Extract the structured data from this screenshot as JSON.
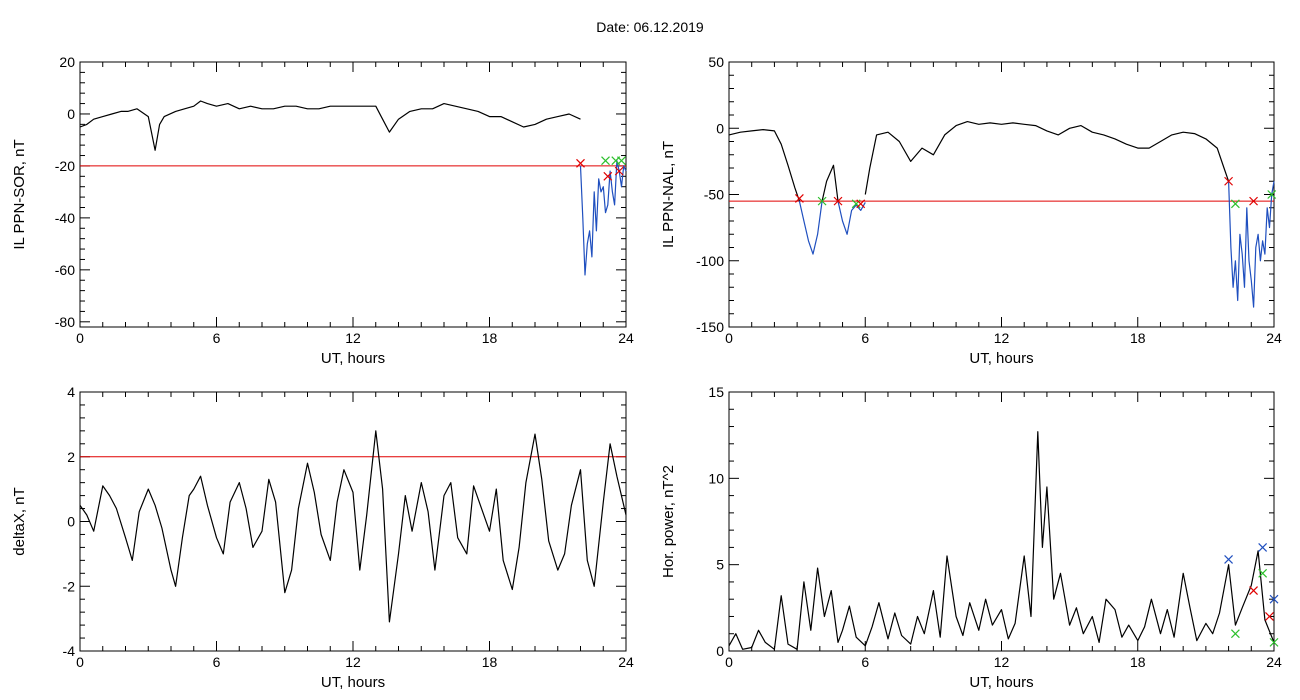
{
  "page": {
    "title": "Date:  06.12.2019"
  },
  "chart_data": [
    {
      "id": "ppn-sor",
      "type": "line",
      "xlabel": "UT, hours",
      "ylabel": "IL PPN-SOR, nT",
      "xlim": [
        0,
        24
      ],
      "ylim": [
        -82,
        20
      ],
      "xticks": [
        0,
        6,
        12,
        18,
        24
      ],
      "yticks": [
        20,
        0,
        -20,
        -40,
        -60,
        -80
      ],
      "threshold": -20,
      "colors": {
        "line": "#000000",
        "highlight": "#1f4fbf",
        "threshold": "#e00000"
      },
      "series": [
        {
          "color": "#000000",
          "x": [
            0,
            0.3,
            0.6,
            1,
            1.4,
            1.8,
            2.1,
            2.5,
            3,
            3.3,
            3.5,
            3.7,
            4.2,
            4.6,
            5,
            5.3,
            5.6,
            6,
            6.5,
            7,
            7.5,
            8,
            8.5,
            9,
            9.5,
            10,
            10.5,
            11,
            11.5,
            12,
            12.5,
            13,
            13.3,
            13.6,
            14,
            14.5,
            15,
            15.5,
            16,
            16.5,
            17,
            17.5,
            18,
            18.5,
            19,
            19.5,
            20,
            20.5,
            21,
            21.5,
            22
          ],
          "y": [
            -5,
            -4,
            -2,
            -1,
            0,
            1,
            1,
            2,
            -1,
            -14,
            -4,
            -1,
            1,
            2,
            3,
            5,
            4,
            3,
            4,
            2,
            3,
            2,
            2,
            3,
            3,
            2,
            2,
            3,
            3,
            3,
            3,
            3,
            -2,
            -7,
            -2,
            1,
            2,
            2,
            4,
            3,
            2,
            1,
            -1,
            -1,
            -3,
            -5,
            -4,
            -2,
            -1,
            0,
            -2
          ]
        },
        {
          "color": "#1f4fbf",
          "x": [
            22,
            22.1,
            22.2,
            22.3,
            22.4,
            22.5,
            22.6,
            22.7,
            22.8,
            22.9,
            23,
            23.1,
            23.2,
            23.3,
            23.4,
            23.5,
            23.6,
            23.7,
            23.8,
            23.9,
            24
          ],
          "y": [
            -20,
            -40,
            -62,
            -50,
            -45,
            -55,
            -30,
            -45,
            -25,
            -30,
            -28,
            -38,
            -35,
            -22,
            -30,
            -35,
            -18,
            -22,
            -28,
            -20,
            -22
          ]
        }
      ],
      "markers": [
        {
          "x": 22,
          "y": -19,
          "color": "#e00000"
        },
        {
          "x": 23.1,
          "y": -18,
          "color": "#2bbf2b"
        },
        {
          "x": 23.2,
          "y": -24,
          "color": "#e00000"
        },
        {
          "x": 23.55,
          "y": -18,
          "color": "#2bbf2b"
        },
        {
          "x": 23.7,
          "y": -22,
          "color": "#e00000"
        },
        {
          "x": 23.8,
          "y": -18,
          "color": "#2bbf2b"
        }
      ]
    },
    {
      "id": "ppn-nal",
      "type": "line",
      "xlabel": "UT, hours",
      "ylabel": "IL PPN-NAL, nT",
      "xlim": [
        0,
        24
      ],
      "ylim": [
        -150,
        50
      ],
      "xticks": [
        0,
        6,
        12,
        18,
        24
      ],
      "yticks": [
        50,
        0,
        -50,
        -100,
        -150
      ],
      "threshold": -55,
      "colors": {
        "line": "#000000",
        "highlight": "#1f4fbf",
        "threshold": "#e00000"
      },
      "series": [
        {
          "color": "#000000",
          "x": [
            0,
            0.5,
            1,
            1.5,
            2,
            2.3,
            2.6,
            2.9,
            3.1
          ],
          "y": [
            -5,
            -3,
            -2,
            -1,
            -2,
            -12,
            -28,
            -45,
            -55
          ]
        },
        {
          "color": "#1f4fbf",
          "x": [
            3.1,
            3.3,
            3.5,
            3.7,
            3.9,
            4.1
          ],
          "y": [
            -55,
            -70,
            -85,
            -95,
            -80,
            -55
          ]
        },
        {
          "color": "#000000",
          "x": [
            4.1,
            4.3,
            4.6,
            4.8
          ],
          "y": [
            -55,
            -40,
            -28,
            -55
          ]
        },
        {
          "color": "#1f4fbf",
          "x": [
            4.8,
            5,
            5.2,
            5.4,
            5.6,
            5.8,
            6
          ],
          "y": [
            -55,
            -70,
            -80,
            -62,
            -58,
            -62,
            -56
          ]
        },
        {
          "color": "#000000",
          "x": [
            6,
            6.2,
            6.5,
            7,
            7.5,
            8,
            8.5,
            9,
            9.5,
            10,
            10.5,
            11,
            11.5,
            12,
            12.5,
            13,
            13.5,
            14,
            14.5,
            15,
            15.5,
            16,
            16.5,
            17,
            17.5,
            18,
            18.5,
            19,
            19.5,
            20,
            20.5,
            21,
            21.5,
            21.8,
            22
          ],
          "y": [
            -50,
            -30,
            -5,
            -3,
            -10,
            -25,
            -15,
            -20,
            -5,
            2,
            5,
            3,
            4,
            3,
            4,
            3,
            2,
            -2,
            -5,
            0,
            2,
            -3,
            -5,
            -8,
            -12,
            -15,
            -15,
            -10,
            -5,
            -3,
            -4,
            -8,
            -15,
            -30,
            -40
          ]
        },
        {
          "color": "#1f4fbf",
          "x": [
            22,
            22.1,
            22.2,
            22.3,
            22.4,
            22.5,
            22.6,
            22.7,
            22.8,
            22.9,
            23,
            23.1,
            23.2,
            23.3,
            23.4,
            23.5,
            23.6,
            23.7,
            23.8,
            23.9,
            24
          ],
          "y": [
            -40,
            -90,
            -120,
            -100,
            -130,
            -80,
            -95,
            -120,
            -60,
            -100,
            -115,
            -135,
            -90,
            -80,
            -100,
            -85,
            -95,
            -60,
            -75,
            -50,
            -40
          ]
        }
      ],
      "markers": [
        {
          "x": 3.1,
          "y": -53,
          "color": "#e00000"
        },
        {
          "x": 4.1,
          "y": -55,
          "color": "#2bbf2b"
        },
        {
          "x": 4.8,
          "y": -55,
          "color": "#e00000"
        },
        {
          "x": 5.6,
          "y": -57,
          "color": "#2bbf2b"
        },
        {
          "x": 5.8,
          "y": -57,
          "color": "#e00000"
        },
        {
          "x": 22,
          "y": -40,
          "color": "#e00000"
        },
        {
          "x": 22.3,
          "y": -57,
          "color": "#2bbf2b"
        },
        {
          "x": 23.1,
          "y": -55,
          "color": "#e00000"
        },
        {
          "x": 23.9,
          "y": -50,
          "color": "#2bbf2b"
        }
      ]
    },
    {
      "id": "deltax",
      "type": "line",
      "xlabel": "UT, hours",
      "ylabel": "deltaX, nT",
      "xlim": [
        0,
        24
      ],
      "ylim": [
        -4,
        4
      ],
      "xticks": [
        0,
        6,
        12,
        18,
        24
      ],
      "yticks": [
        4,
        2,
        0,
        -2,
        -4
      ],
      "threshold": 2,
      "colors": {
        "line": "#000000",
        "threshold": "#e00000"
      },
      "series": [
        {
          "color": "#000000",
          "x": [
            0,
            0.3,
            0.6,
            1,
            1.3,
            1.6,
            2,
            2.3,
            2.6,
            3,
            3.3,
            3.6,
            4,
            4.2,
            4.5,
            4.8,
            5,
            5.3,
            5.6,
            6,
            6.3,
            6.6,
            7,
            7.3,
            7.6,
            8,
            8.3,
            8.6,
            9,
            9.3,
            9.6,
            10,
            10.3,
            10.6,
            11,
            11.3,
            11.6,
            12,
            12.3,
            12.6,
            13,
            13.3,
            13.6,
            14,
            14.3,
            14.6,
            15,
            15.3,
            15.6,
            16,
            16.3,
            16.6,
            17,
            17.3,
            17.6,
            18,
            18.3,
            18.6,
            19,
            19.3,
            19.6,
            20,
            20.3,
            20.6,
            21,
            21.3,
            21.6,
            22,
            22.3,
            22.6,
            23,
            23.3,
            23.6,
            24
          ],
          "y": [
            0.5,
            0.2,
            -0.3,
            1.1,
            0.8,
            0.4,
            -0.5,
            -1.2,
            0.3,
            1.0,
            0.5,
            -0.2,
            -1.5,
            -2.0,
            -0.5,
            0.8,
            1.0,
            1.4,
            0.5,
            -0.5,
            -1.0,
            0.6,
            1.2,
            0.4,
            -0.8,
            -0.3,
            1.3,
            0.6,
            -2.2,
            -1.5,
            0.4,
            1.8,
            0.9,
            -0.4,
            -1.2,
            0.6,
            1.6,
            0.9,
            -1.5,
            0.2,
            2.8,
            1.0,
            -3.1,
            -1.0,
            0.8,
            -0.3,
            1.2,
            0.3,
            -1.5,
            0.8,
            1.2,
            -0.5,
            -1.0,
            1.1,
            0.5,
            -0.3,
            1.0,
            -1.2,
            -2.1,
            -0.8,
            1.2,
            2.7,
            1.3,
            -0.6,
            -1.5,
            -1.0,
            0.5,
            1.6,
            -1.2,
            -2.0,
            0.6,
            2.4,
            1.4,
            0.2
          ]
        }
      ],
      "markers": []
    },
    {
      "id": "hor-power",
      "type": "line",
      "xlabel": "UT, hours",
      "ylabel": "Hor. power, nT^2",
      "xlim": [
        0,
        24
      ],
      "ylim": [
        0,
        15
      ],
      "xticks": [
        0,
        6,
        12,
        18,
        24
      ],
      "yticks": [
        15,
        10,
        5,
        0
      ],
      "colors": {
        "line": "#000000"
      },
      "series": [
        {
          "color": "#000000",
          "x": [
            0,
            0.3,
            0.6,
            1,
            1.3,
            1.6,
            2,
            2.3,
            2.6,
            3,
            3.3,
            3.6,
            3.9,
            4.2,
            4.5,
            4.8,
            5,
            5.3,
            5.6,
            6,
            6.3,
            6.6,
            7,
            7.3,
            7.6,
            8,
            8.3,
            8.6,
            9,
            9.3,
            9.6,
            10,
            10.3,
            10.6,
            11,
            11.3,
            11.6,
            12,
            12.3,
            12.6,
            13,
            13.3,
            13.6,
            13.8,
            14,
            14.3,
            14.6,
            15,
            15.3,
            15.6,
            16,
            16.3,
            16.6,
            17,
            17.3,
            17.6,
            18,
            18.3,
            18.6,
            19,
            19.3,
            19.6,
            20,
            20.3,
            20.6,
            21,
            21.3,
            21.6,
            22,
            22.3,
            22.6,
            23,
            23.3,
            23.6,
            24
          ],
          "y": [
            0.3,
            1.0,
            0.1,
            0.2,
            1.2,
            0.5,
            0.1,
            3.2,
            0.4,
            0.1,
            4.0,
            1.2,
            4.8,
            2.0,
            3.5,
            0.5,
            1.2,
            2.6,
            0.8,
            0.3,
            1.4,
            2.8,
            0.7,
            2.2,
            0.9,
            0.4,
            2.0,
            1.0,
            3.5,
            0.8,
            5.5,
            2.0,
            0.9,
            2.8,
            1.2,
            3.0,
            1.5,
            2.4,
            0.7,
            1.6,
            5.5,
            2.0,
            12.7,
            6.0,
            9.5,
            3.0,
            4.5,
            1.5,
            2.5,
            1.0,
            2.0,
            0.5,
            3.0,
            2.4,
            0.8,
            1.5,
            0.6,
            1.4,
            3.0,
            1.0,
            2.4,
            0.8,
            4.5,
            2.5,
            0.6,
            1.6,
            1.0,
            2.2,
            5.0,
            1.5,
            2.5,
            3.8,
            5.8,
            1.8,
            0.5
          ]
        }
      ],
      "markers": [
        {
          "x": 22,
          "y": 5.3,
          "color": "#1f4fbf"
        },
        {
          "x": 22.3,
          "y": 1.0,
          "color": "#2bbf2b"
        },
        {
          "x": 23.1,
          "y": 3.5,
          "color": "#e00000"
        },
        {
          "x": 23.5,
          "y": 6.0,
          "color": "#1f4fbf"
        },
        {
          "x": 23.5,
          "y": 4.5,
          "color": "#2bbf2b"
        },
        {
          "x": 23.8,
          "y": 2.0,
          "color": "#e00000"
        },
        {
          "x": 24,
          "y": 3.0,
          "color": "#1f4fbf"
        },
        {
          "x": 24,
          "y": 0.5,
          "color": "#2bbf2b"
        }
      ]
    }
  ]
}
